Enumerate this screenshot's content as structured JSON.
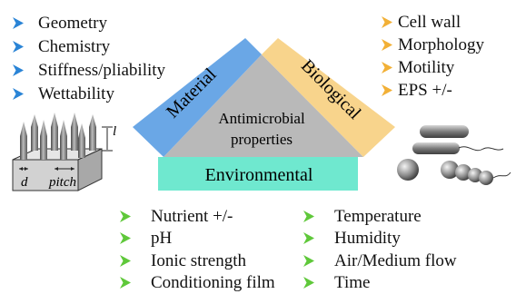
{
  "colors": {
    "material": "#6aa7e6",
    "biological": "#f8d48c",
    "environmental": "#6fe8cf",
    "center": "#b9b9b9",
    "arrow_material": "#2a84d6",
    "arrow_bio": "#f2b036",
    "arrow_env": "#5fc83a"
  },
  "material": {
    "label": "Material",
    "factors": [
      "Geometry",
      "Chemistry",
      "Stiffness/pliability",
      "Wettability"
    ]
  },
  "biological": {
    "label": "Biological",
    "factors": [
      "Cell wall",
      "Morphology",
      "Motility",
      "EPS +/-"
    ]
  },
  "center": {
    "line1": "Antimicrobial",
    "line2": "properties"
  },
  "environmental": {
    "label": "Environmental",
    "factors_left": [
      "Nutrient +/-",
      "pH",
      "Ionic strength",
      "Conditioning film"
    ],
    "factors_right": [
      "Temperature",
      "Humidity",
      "Air/Medium flow",
      "Time"
    ]
  },
  "surface_illustration": {
    "d_label": "d",
    "pitch_label": "pitch",
    "height_label": "l"
  },
  "icons": [
    "arrow-bullet-icon",
    "nanopillar-surface-illustration",
    "bacteria-illustration"
  ]
}
